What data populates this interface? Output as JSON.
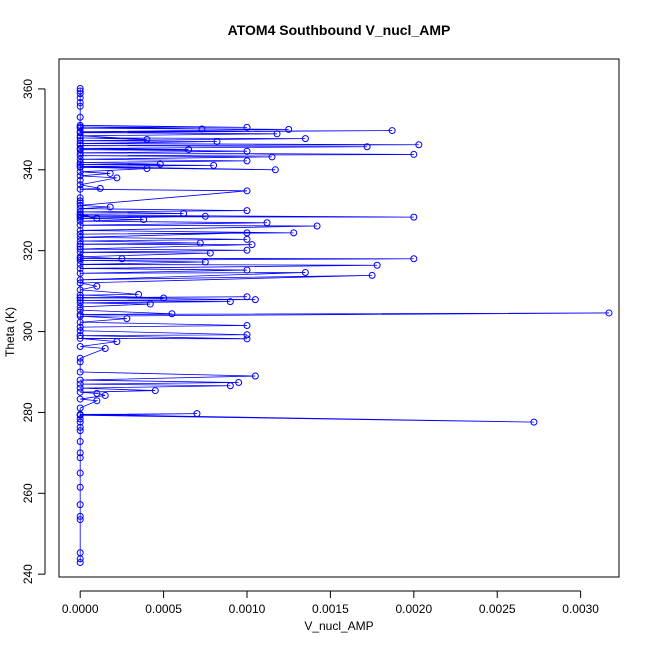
{
  "chart_data": {
    "type": "scatter",
    "title": "ATOM4 Southbound V_nucl_AMP",
    "xlabel": "V_nucl_AMP",
    "ylabel": "Theta (K)",
    "xlim": [
      -0.000127,
      0.00323
    ],
    "ylim": [
      239.3,
      367.4
    ],
    "x_ticks": [
      0,
      0.0005,
      0.001,
      0.0015,
      0.002,
      0.0025,
      0.003
    ],
    "x_tick_labels": [
      "0.0000",
      "0.0005",
      "0.0010",
      "0.0015",
      "0.0020",
      "0.0025",
      "0.0030"
    ],
    "y_ticks": [
      240,
      260,
      280,
      300,
      320,
      340,
      360
    ],
    "y_tick_labels": [
      "240",
      "260",
      "280",
      "300",
      "320",
      "340",
      "360"
    ],
    "grid": false,
    "connected": true,
    "marker": "open-circle",
    "series": [
      {
        "color": "#0000ff",
        "points": [
          [
            0.0,
            242.9
          ],
          [
            0.0,
            243.8
          ],
          [
            0.0,
            245.3
          ],
          [
            0.0,
            253.5
          ],
          [
            0.0,
            254.3
          ],
          [
            0.0,
            257.2
          ],
          [
            0.0,
            261.5
          ],
          [
            0.0,
            265.0
          ],
          [
            0.0,
            268.8
          ],
          [
            0.0,
            270.0
          ],
          [
            0.0,
            272.8
          ],
          [
            0.0,
            275.5
          ],
          [
            0.0,
            276.3
          ],
          [
            0.0,
            277.6
          ],
          [
            0.0,
            278.4
          ],
          [
            0.0,
            279.5
          ],
          [
            0.00272,
            277.6
          ],
          [
            0.0,
            279.3
          ],
          [
            0.0007,
            279.7
          ],
          [
            0.0,
            279.5
          ],
          [
            0.0,
            281.1
          ],
          [
            0.0001,
            282.9
          ],
          [
            0.0,
            283.3
          ],
          [
            0.00015,
            284.2
          ],
          [
            0.0001,
            284.7
          ],
          [
            0.0,
            285.0
          ],
          [
            0.00045,
            285.4
          ],
          [
            0.0,
            286.0
          ],
          [
            0.0009,
            286.6
          ],
          [
            0.0,
            287.0
          ],
          [
            0.00095,
            287.4
          ],
          [
            0.0,
            288.0
          ],
          [
            0.00105,
            289.0
          ],
          [
            0.0,
            290.0
          ],
          [
            0.0,
            292.5
          ],
          [
            0.0,
            293.4
          ],
          [
            0.00015,
            295.8
          ],
          [
            0.0,
            296.3
          ],
          [
            0.00022,
            297.5
          ],
          [
            0.0,
            298.3
          ],
          [
            0.001,
            298.2
          ],
          [
            0.0,
            299.0
          ],
          [
            0.001,
            299.2
          ],
          [
            0.0,
            300.2
          ],
          [
            0.0,
            301.1
          ],
          [
            0.001,
            301.5
          ],
          [
            0.0,
            302.3
          ],
          [
            0.00028,
            303.2
          ],
          [
            0.0,
            303.8
          ],
          [
            0.00317,
            304.6
          ],
          [
            0.0,
            304.2
          ],
          [
            0.00055,
            304.4
          ],
          [
            0.0,
            305.3
          ],
          [
            0.0,
            306.1
          ],
          [
            0.00042,
            306.8
          ],
          [
            0.0,
            307.1
          ],
          [
            0.0009,
            307.4
          ],
          [
            0.0,
            307.7
          ],
          [
            0.00105,
            307.9
          ],
          [
            0.0,
            308.4
          ],
          [
            0.001,
            308.6
          ],
          [
            0.0,
            308.3
          ],
          [
            0.0005,
            308.3
          ],
          [
            0.0,
            309.0
          ],
          [
            0.00035,
            309.2
          ],
          [
            0.0,
            310.3
          ],
          [
            0.0001,
            311.2
          ],
          [
            0.0,
            312.0
          ],
          [
            0.00175,
            313.9
          ],
          [
            0.0,
            312.8
          ],
          [
            0.00135,
            314.6
          ],
          [
            0.0,
            314.4
          ],
          [
            0.001,
            315.2
          ],
          [
            0.0,
            315.6
          ],
          [
            0.00178,
            316.4
          ],
          [
            0.0,
            316.6
          ],
          [
            0.00075,
            317.2
          ],
          [
            0.0,
            317.6
          ],
          [
            0.002,
            318.0
          ],
          [
            0.0,
            318.1
          ],
          [
            0.00025,
            318.0
          ],
          [
            0.0,
            318.5
          ],
          [
            0.00078,
            319.4
          ],
          [
            0.0,
            319.6
          ],
          [
            0.001,
            320.1
          ],
          [
            0.0,
            320.4
          ],
          [
            0.00103,
            321.5
          ],
          [
            0.0,
            321.6
          ],
          [
            0.00072,
            321.9
          ],
          [
            0.0,
            322.4
          ],
          [
            0.001,
            322.8
          ],
          [
            0.0,
            323.3
          ],
          [
            0.001,
            324.4
          ],
          [
            0.0,
            324.1
          ],
          [
            0.00128,
            324.4
          ],
          [
            0.0,
            325.0
          ],
          [
            0.00142,
            326.1
          ],
          [
            0.0,
            326.3
          ],
          [
            0.00112,
            326.9
          ],
          [
            0.0,
            327.3
          ],
          [
            0.00038,
            327.7
          ],
          [
            0.0,
            328.0
          ],
          [
            0.00075,
            328.5
          ],
          [
            0.0,
            328.4
          ],
          [
            0.002,
            328.3
          ],
          [
            0.0,
            328.8
          ],
          [
            0.0001,
            328.0
          ],
          [
            0.0,
            329.0
          ],
          [
            0.00062,
            329.2
          ],
          [
            0.0,
            329.6
          ],
          [
            0.001,
            329.9
          ],
          [
            0.0,
            330.4
          ],
          [
            0.00018,
            330.8
          ],
          [
            0.0,
            331.2
          ],
          [
            0.001,
            334.8
          ],
          [
            0.0,
            335.2
          ],
          [
            0.00012,
            335.4
          ],
          [
            0.0,
            336.3
          ],
          [
            0.00022,
            338.0
          ],
          [
            0.0,
            338.5
          ],
          [
            0.00018,
            339.1
          ],
          [
            0.0,
            339.5
          ],
          [
            0.0004,
            340.3
          ],
          [
            0.0,
            340.6
          ],
          [
            0.00117,
            340.0
          ],
          [
            0.0,
            340.8
          ],
          [
            0.0008,
            341.1
          ],
          [
            0.0,
            341.3
          ],
          [
            0.00048,
            341.4
          ],
          [
            0.0,
            341.8
          ],
          [
            0.001,
            342.2
          ],
          [
            0.0,
            342.6
          ],
          [
            0.00115,
            343.2
          ],
          [
            0.0,
            343.5
          ],
          [
            0.002,
            343.8
          ],
          [
            0.0,
            344.2
          ],
          [
            0.001,
            344.6
          ],
          [
            0.0,
            345.0
          ],
          [
            0.00065,
            345.0
          ],
          [
            0.0,
            345.3
          ],
          [
            0.00172,
            345.7
          ],
          [
            0.0,
            346.0
          ],
          [
            0.00203,
            346.2
          ],
          [
            0.0,
            346.5
          ],
          [
            0.00082,
            347.0
          ],
          [
            0.0,
            347.2
          ],
          [
            0.00135,
            347.7
          ],
          [
            0.0,
            347.9
          ],
          [
            0.0004,
            347.5
          ],
          [
            0.0,
            348.4
          ],
          [
            0.00118,
            348.9
          ],
          [
            0.0,
            349.2
          ],
          [
            0.00187,
            349.7
          ],
          [
            0.0,
            349.4
          ],
          [
            0.00125,
            350.0
          ],
          [
            0.0,
            350.3
          ],
          [
            0.00073,
            350.1
          ],
          [
            0.0,
            350.6
          ],
          [
            0.001,
            350.5
          ],
          [
            0.0,
            351.0
          ],
          [
            0.0,
            353.0
          ],
          [
            0.0,
            355.7
          ],
          [
            0.0,
            356.6
          ],
          [
            0.0,
            357.8
          ],
          [
            0.0,
            358.8
          ],
          [
            0.0,
            359.5
          ],
          [
            0.0,
            360.1
          ],
          [
            0.0,
            299.0
          ],
          [
            0.0,
            321.0
          ],
          [
            0.0,
            331.8
          ],
          [
            0.0,
            332.3
          ],
          [
            0.0,
            333.1
          ],
          [
            0.0,
            337.4
          ]
        ]
      }
    ]
  }
}
